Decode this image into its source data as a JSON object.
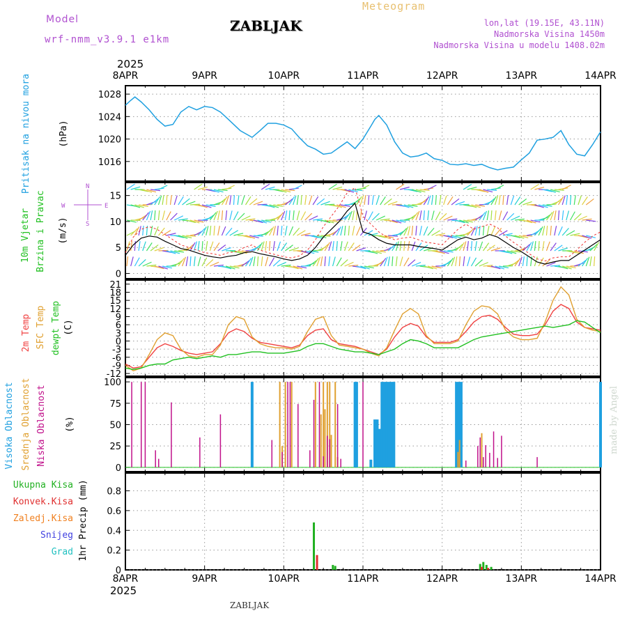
{
  "header": {
    "model_label": "Model",
    "model_name": "wrf-nmm_v3.9.1  e1km",
    "station_title": "ZABLJAK",
    "product": "Meteogram",
    "coords": "lon,lat (19.15E, 43.11N)",
    "elevation": "Nadmorska Visina 1450m",
    "model_elevation": "Nadmorska Visina u modelu 1408.02m",
    "year_top": "2025",
    "year_bottom": "2025",
    "footer_title": "ZABLJAK",
    "credit": "made by Angel"
  },
  "axis": {
    "days": [
      "8APR",
      "9APR",
      "10APR",
      "11APR",
      "12APR",
      "13APR",
      "14APR"
    ]
  },
  "colors": {
    "pressure": "#1fa0e0",
    "temp2m": "#f04040",
    "sfc": "#e0a030",
    "dewpt": "#20c020",
    "high_cloud": "#1fa0e0",
    "mid_cloud": "#e0a030",
    "low_cloud": "#c0108a",
    "total_precip": "#20b020",
    "conv_precip": "#e03030",
    "freezing": "#f08020",
    "snow": "#4040e0",
    "hail": "#20c0c0",
    "wind_speed": "#000000",
    "gust": "#f03030",
    "compass": "#b050d0"
  },
  "chart_data": [
    {
      "type": "line",
      "panel": "pressure",
      "ylabel_1": "Pritisak na nivou mora",
      "ylabel_2": "(hPa)",
      "yticks": [
        "1016",
        "1020",
        "1024",
        "1028"
      ],
      "ylim": [
        1012.5,
        1029.5
      ],
      "x_days": [
        0,
        0.06,
        0.12,
        0.2,
        0.3,
        0.4,
        0.5,
        0.6,
        0.7,
        0.8,
        0.9,
        1.0,
        1.1,
        1.2,
        1.3,
        1.45,
        1.6,
        1.7,
        1.8,
        1.9,
        2.0,
        2.1,
        2.2,
        2.3,
        2.4,
        2.5,
        2.6,
        2.7,
        2.8,
        2.9,
        3.0,
        3.1,
        3.15,
        3.2,
        3.3,
        3.4,
        3.5,
        3.6,
        3.7,
        3.8,
        3.9,
        4.0,
        4.1,
        4.2,
        4.3,
        4.4,
        4.5,
        4.6,
        4.7,
        4.8,
        4.9,
        5.0,
        5.1,
        5.2,
        5.3,
        5.4,
        5.5,
        5.6,
        5.7,
        5.8,
        5.9,
        6.0
      ],
      "series": [
        {
          "values": [
            1026,
            1026.8,
            1027.5,
            1026.6,
            1025.2,
            1023.5,
            1022.3,
            1022.6,
            1024.8,
            1025.8,
            1025.2,
            1025.8,
            1025.6,
            1024.8,
            1023.5,
            1021.5,
            1020.3,
            1021.5,
            1022.8,
            1022.8,
            1022.5,
            1021.8,
            1020.2,
            1018.8,
            1018.2,
            1017.3,
            1017.5,
            1018.5,
            1019.5,
            1018.3,
            1020,
            1022.3,
            1023.5,
            1024.2,
            1022.5,
            1019.5,
            1017.5,
            1016.8,
            1017,
            1017.5,
            1016.5,
            1016.2,
            1015.5,
            1015.4,
            1015.6,
            1015.3,
            1015.5,
            1014.9,
            1014.5,
            1014.8,
            1015,
            1016.3,
            1017.5,
            1019.8,
            1020,
            1020.3,
            1021.5,
            1019,
            1017.3,
            1017,
            1019,
            1021.3
          ]
        }
      ]
    },
    {
      "type": "line",
      "panel": "wind",
      "ylabel_1": "10m Vjetar",
      "ylabel_2": "Brzina i Pravac",
      "ylabel_3": "(m/s)",
      "compass": {
        "n": "N",
        "s": "S",
        "e": "E",
        "w": "W"
      },
      "yticks": [
        "0",
        "5",
        "10",
        "15"
      ],
      "ylim": [
        -1,
        17.5
      ],
      "x_days": [
        0,
        0.1,
        0.2,
        0.3,
        0.4,
        0.5,
        0.6,
        0.7,
        0.8,
        0.9,
        1.0,
        1.1,
        1.2,
        1.3,
        1.4,
        1.5,
        1.6,
        1.7,
        1.8,
        1.9,
        2.0,
        2.1,
        2.2,
        2.3,
        2.4,
        2.5,
        2.6,
        2.7,
        2.8,
        2.9,
        3.0,
        3.1,
        3.2,
        3.3,
        3.4,
        3.5,
        3.6,
        3.7,
        3.8,
        3.9,
        4.0,
        4.1,
        4.2,
        4.3,
        4.4,
        4.5,
        4.6,
        4.7,
        4.8,
        4.9,
        5.0,
        5.1,
        5.2,
        5.3,
        5.4,
        5.5,
        5.6,
        5.7,
        5.8,
        5.9,
        6.0
      ],
      "series": [
        {
          "name_speed": "speed",
          "values": [
            3.5,
            5.5,
            6.8,
            7.2,
            7,
            6.2,
            5.5,
            4.8,
            4.5,
            4,
            3.5,
            3.2,
            3,
            3.3,
            3.5,
            4,
            4.2,
            3.8,
            3.5,
            3.2,
            2.8,
            2.5,
            2.8,
            3.5,
            5,
            7,
            8.5,
            10,
            12,
            13.5,
            8,
            7.5,
            6.5,
            5.8,
            5.5,
            5.5,
            5.5,
            5.2,
            5,
            4.8,
            4.5,
            5.5,
            6.5,
            7,
            6.5,
            6.8,
            7.5,
            7,
            6,
            5,
            4.2,
            3.2,
            2.2,
            1.8,
            2.2,
            2.5,
            2.5,
            3.5,
            4.5,
            5.5,
            6.5
          ]
        },
        {
          "name_gust": "gust",
          "values": [
            4,
            7,
            8.5,
            9,
            8.5,
            7.5,
            6.5,
            5.5,
            5,
            4.5,
            4,
            3.8,
            3.5,
            4,
            4.2,
            5,
            5.5,
            4.5,
            4,
            3.6,
            3.2,
            3,
            3.4,
            4.5,
            6.5,
            9,
            11,
            13,
            15.5,
            16.5,
            11,
            9.5,
            8,
            7,
            6.5,
            6.8,
            7,
            6.5,
            6,
            5.8,
            5.5,
            7,
            8.5,
            9.5,
            8.5,
            9,
            9.5,
            8.8,
            7.2,
            6,
            5,
            3.8,
            2.8,
            2.4,
            3,
            3.2,
            3.2,
            4.5,
            6,
            7.2,
            8
          ]
        }
      ]
    },
    {
      "type": "line",
      "panel": "temperature",
      "ylabel_1": "2m Temp",
      "ylabel_2": "SFC Temp",
      "ylabel_3": "dewpt Temp",
      "ylabel_4": "(C)",
      "yticks": [
        "-12",
        "-9",
        "-6",
        "-3",
        "0",
        "3",
        "6",
        "9",
        "12",
        "15",
        "18",
        "21"
      ],
      "ylim": [
        -13,
        22.5
      ],
      "x_days": [
        0,
        0.1,
        0.2,
        0.3,
        0.4,
        0.5,
        0.6,
        0.7,
        0.8,
        0.9,
        1.0,
        1.1,
        1.2,
        1.3,
        1.4,
        1.5,
        1.6,
        1.7,
        1.8,
        1.9,
        2.0,
        2.1,
        2.2,
        2.3,
        2.4,
        2.5,
        2.6,
        2.7,
        2.8,
        2.9,
        3.0,
        3.1,
        3.2,
        3.3,
        3.4,
        3.5,
        3.6,
        3.7,
        3.8,
        3.9,
        4.0,
        4.1,
        4.2,
        4.3,
        4.4,
        4.5,
        4.6,
        4.7,
        4.8,
        4.9,
        5.0,
        5.1,
        5.2,
        5.3,
        5.4,
        5.5,
        5.6,
        5.7,
        5.8,
        5.9,
        6.0
      ],
      "series": [
        {
          "name": "temp2m",
          "values": [
            -8.5,
            -10,
            -9.5,
            -6,
            -2.5,
            -1,
            -2,
            -3.5,
            -4.5,
            -5,
            -4.5,
            -4,
            -1,
            3,
            4.5,
            3.5,
            1,
            -0.5,
            -1,
            -1.5,
            -2,
            -2.5,
            -1.5,
            2,
            4,
            4.5,
            0.5,
            -1,
            -1.5,
            -2,
            -3,
            -4,
            -5,
            -3,
            1.5,
            5,
            6.5,
            5.5,
            1.5,
            -0.5,
            -0.5,
            -0.5,
            0.5,
            3.5,
            7,
            9,
            9.5,
            8,
            5,
            2.5,
            2,
            2,
            2.5,
            6,
            11,
            13.5,
            12,
            7,
            5,
            4.5,
            4
          ]
        },
        {
          "name": "sfc",
          "values": [
            -9,
            -11,
            -10,
            -5,
            0.5,
            3,
            2,
            -3,
            -5.5,
            -6,
            -5,
            -5,
            -1.5,
            6,
            9,
            8,
            1.5,
            -1,
            -2,
            -2.5,
            -2.5,
            -3,
            -2,
            3.5,
            8,
            9,
            2,
            -1.5,
            -2,
            -2.5,
            -3,
            -4.5,
            -5.5,
            -2.5,
            4,
            10,
            12,
            10,
            2,
            -1,
            -1,
            -1,
            0,
            6,
            11,
            13,
            12.5,
            10,
            4,
            1.5,
            0.5,
            0.5,
            1,
            7,
            15,
            20,
            17,
            8,
            5,
            4,
            3.5
          ]
        },
        {
          "name": "dewpt",
          "values": [
            -10,
            -10.5,
            -10,
            -9,
            -8.5,
            -8.5,
            -7,
            -6.5,
            -6,
            -6.5,
            -6,
            -5.5,
            -6,
            -5,
            -5,
            -4.5,
            -4,
            -4,
            -4.5,
            -4.5,
            -4.5,
            -4,
            -3.5,
            -2,
            -1,
            -1,
            -2,
            -3,
            -3.5,
            -4,
            -4,
            -4.5,
            -5,
            -4,
            -3,
            -1,
            0.5,
            0,
            -1,
            -2.5,
            -2.5,
            -2.5,
            -2.5,
            -1,
            0.5,
            1.5,
            2,
            2.5,
            3,
            3.5,
            4,
            4.5,
            5,
            5.5,
            5,
            5.5,
            6,
            7.5,
            7,
            5,
            3
          ]
        }
      ]
    },
    {
      "type": "bar",
      "panel": "cloud",
      "ylabel_1": "Visoka Oblacnost",
      "ylabel_2": "Srednja Oblacnost",
      "ylabel_3": "Niska Oblacnost",
      "ylabel_4": "(%)",
      "yticks": [
        "0",
        "25",
        "50",
        "75",
        "100"
      ],
      "ylim": [
        -5,
        105
      ],
      "high": [
        [
          1.6,
          100
        ],
        [
          2.9,
          100
        ],
        [
          2.92,
          100
        ],
        [
          3.1,
          9
        ],
        [
          3.15,
          56
        ],
        [
          3.18,
          56
        ],
        [
          3.21,
          45
        ],
        [
          3.24,
          100
        ],
        [
          3.27,
          100
        ],
        [
          3.3,
          100
        ],
        [
          3.33,
          100
        ],
        [
          3.36,
          100
        ],
        [
          3.39,
          100
        ],
        [
          4.18,
          100
        ],
        [
          4.21,
          100
        ],
        [
          4.24,
          100
        ],
        [
          6.0,
          100
        ]
      ],
      "mid": [
        [
          1.95,
          100
        ],
        [
          1.98,
          25
        ],
        [
          2.02,
          100
        ],
        [
          2.1,
          100
        ],
        [
          2.4,
          100
        ],
        [
          2.47,
          62
        ],
        [
          2.5,
          100
        ],
        [
          2.52,
          68
        ],
        [
          2.55,
          100
        ],
        [
          2.58,
          100
        ],
        [
          2.6,
          38
        ],
        [
          2.65,
          100
        ],
        [
          2.68,
          12
        ],
        [
          4.2,
          18
        ],
        [
          4.22,
          32
        ],
        [
          4.5,
          40
        ]
      ],
      "low": [
        [
          0.08,
          100
        ],
        [
          0.2,
          100
        ],
        [
          0.25,
          100
        ],
        [
          0.38,
          20
        ],
        [
          0.42,
          10
        ],
        [
          0.58,
          76
        ],
        [
          0.94,
          35
        ],
        [
          1.2,
          62
        ],
        [
          1.85,
          32
        ],
        [
          1.98,
          18
        ],
        [
          2.05,
          100
        ],
        [
          2.08,
          100
        ],
        [
          2.18,
          74
        ],
        [
          2.33,
          20
        ],
        [
          2.38,
          79
        ],
        [
          2.45,
          100
        ],
        [
          2.5,
          13
        ],
        [
          2.55,
          37
        ],
        [
          2.58,
          33
        ],
        [
          2.68,
          74
        ],
        [
          2.72,
          10
        ],
        [
          3.0,
          100
        ],
        [
          4.3,
          8
        ],
        [
          4.45,
          25
        ],
        [
          4.48,
          35
        ],
        [
          4.52,
          12
        ],
        [
          4.55,
          26
        ],
        [
          4.6,
          17
        ],
        [
          4.65,
          42
        ],
        [
          4.7,
          11
        ],
        [
          4.75,
          37
        ],
        [
          5.2,
          12
        ]
      ]
    },
    {
      "type": "bar",
      "panel": "precip",
      "legend": [
        "Ukupna Kisa",
        "Konvek.Kisa",
        "Zaledj.Kisa",
        "Snijeg",
        "Grad"
      ],
      "ylabel": "1hr Precip (mm)",
      "yticks": [
        "0",
        "0.2",
        "0.4",
        "0.6",
        "0.8"
      ],
      "ylim": [
        0,
        0.98
      ],
      "total": [
        [
          2.38,
          0.48
        ],
        [
          2.62,
          0.05
        ],
        [
          2.65,
          0.04
        ],
        [
          4.48,
          0.06
        ],
        [
          4.52,
          0.08
        ],
        [
          4.56,
          0.05
        ],
        [
          4.62,
          0.03
        ]
      ],
      "conv": [
        [
          2.42,
          0.15
        ],
        [
          4.5,
          0.03
        ],
        [
          4.58,
          0.02
        ]
      ]
    }
  ]
}
